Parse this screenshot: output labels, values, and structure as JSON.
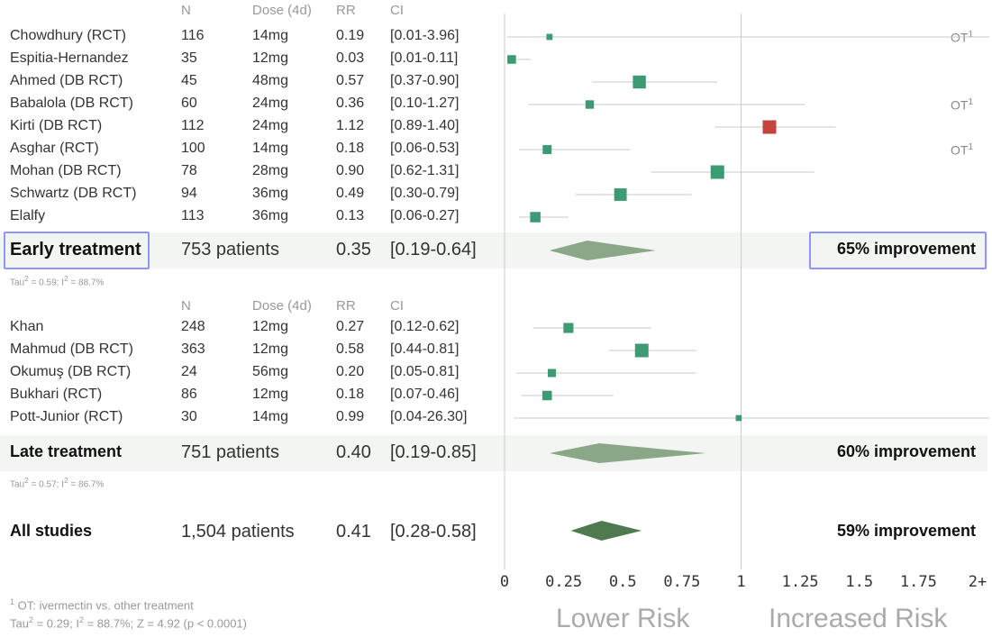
{
  "columns": {
    "study": "",
    "n": "N",
    "dose": "Dose (4d)",
    "rr": "RR",
    "ci": "CI"
  },
  "chart_data": {
    "type": "forest",
    "x_scale": {
      "min": 0,
      "max": 2,
      "ticks": [
        0,
        0.25,
        0.5,
        0.75,
        1,
        1.25,
        1.5,
        1.75,
        2
      ],
      "tick_labels": [
        "0",
        "0.25",
        "0.5",
        "0.75",
        "1",
        "1.25",
        "1.5",
        "1.75",
        "2+"
      ]
    },
    "xlabel_left": "Lower Risk",
    "xlabel_right": "Increased Risk",
    "groups": [
      {
        "name": "Early treatment",
        "studies": [
          {
            "study": "Chowdhury (RCT)",
            "n": "116",
            "dose": "14mg",
            "rr": "0.19",
            "ci": "[0.01-3.96]",
            "rr_val": 0.19,
            "lo": 0.01,
            "hi": 3.96,
            "ot": true
          },
          {
            "study": "Espitia-Hernandez",
            "n": "35",
            "dose": "12mg",
            "rr": "0.03",
            "ci": "[0.01-0.11]",
            "rr_val": 0.03,
            "lo": 0.01,
            "hi": 0.11,
            "ot": false
          },
          {
            "study": "Ahmed (DB RCT)",
            "n": "45",
            "dose": "48mg",
            "rr": "0.57",
            "ci": "[0.37-0.90]",
            "rr_val": 0.57,
            "lo": 0.37,
            "hi": 0.9,
            "ot": false
          },
          {
            "study": "Babalola (DB RCT)",
            "n": "60",
            "dose": "24mg",
            "rr": "0.36",
            "ci": "[0.10-1.27]",
            "rr_val": 0.36,
            "lo": 0.1,
            "hi": 1.27,
            "ot": true
          },
          {
            "study": "Kirti (DB RCT)",
            "n": "112",
            "dose": "24mg",
            "rr": "1.12",
            "ci": "[0.89-1.40]",
            "rr_val": 1.12,
            "lo": 0.89,
            "hi": 1.4,
            "ot": false
          },
          {
            "study": "Asghar (RCT)",
            "n": "100",
            "dose": "14mg",
            "rr": "0.18",
            "ci": "[0.06-0.53]",
            "rr_val": 0.18,
            "lo": 0.06,
            "hi": 0.53,
            "ot": true
          },
          {
            "study": "Mohan (DB RCT)",
            "n": "78",
            "dose": "28mg",
            "rr": "0.90",
            "ci": "[0.62-1.31]",
            "rr_val": 0.9,
            "lo": 0.62,
            "hi": 1.31,
            "ot": false
          },
          {
            "study": "Schwartz (DB RCT)",
            "n": "94",
            "dose": "36mg",
            "rr": "0.49",
            "ci": "[0.30-0.79]",
            "rr_val": 0.49,
            "lo": 0.3,
            "hi": 0.79,
            "ot": false
          },
          {
            "study": "Elalfy",
            "n": "113",
            "dose": "36mg",
            "rr": "0.13",
            "ci": "[0.06-0.27]",
            "rr_val": 0.13,
            "lo": 0.06,
            "hi": 0.27,
            "ot": false
          }
        ],
        "summary": {
          "label": "Early treatment",
          "patients": "753 patients",
          "rr": "0.35",
          "ci": "[0.19-0.64]",
          "rr_val": 0.35,
          "lo": 0.19,
          "hi": 0.64,
          "improvement": "65% improvement"
        },
        "het": {
          "tau_label": "Tau",
          "tau_value": " = 0.59; I",
          "i2_value": " = 88.7%"
        }
      },
      {
        "name": "Late treatment",
        "studies": [
          {
            "study": "Khan",
            "n": "248",
            "dose": "12mg",
            "rr": "0.27",
            "ci": "[0.12-0.62]",
            "rr_val": 0.27,
            "lo": 0.12,
            "hi": 0.62,
            "ot": false
          },
          {
            "study": "Mahmud (DB RCT)",
            "n": "363",
            "dose": "12mg",
            "rr": "0.58",
            "ci": "[0.44-0.81]",
            "rr_val": 0.58,
            "lo": 0.44,
            "hi": 0.81,
            "ot": false
          },
          {
            "study": "Okumuş (DB RCT)",
            "n": "24",
            "dose": "56mg",
            "rr": "0.20",
            "ci": "[0.05-0.81]",
            "rr_val": 0.2,
            "lo": 0.05,
            "hi": 0.81,
            "ot": false
          },
          {
            "study": "Bukhari (RCT)",
            "n": "86",
            "dose": "12mg",
            "rr": "0.18",
            "ci": "[0.07-0.46]",
            "rr_val": 0.18,
            "lo": 0.07,
            "hi": 0.46,
            "ot": false
          },
          {
            "study": "Pott-Junior (RCT)",
            "n": "30",
            "dose": "14mg",
            "rr": "0.99",
            "ci": "[0.04-26.30]",
            "rr_val": 0.99,
            "lo": 0.04,
            "hi": 26.3,
            "ot": false
          }
        ],
        "summary": {
          "label": "Late treatment",
          "patients": "751 patients",
          "rr": "0.40",
          "ci": "[0.19-0.85]",
          "rr_val": 0.4,
          "lo": 0.19,
          "hi": 0.85,
          "improvement": "60% improvement"
        },
        "het": {
          "tau_label": "Tau",
          "tau_value": " = 0.57; I",
          "i2_value": " = 86.7%"
        }
      }
    ],
    "overall": {
      "label": "All studies",
      "patients": "1,504 patients",
      "rr": "0.41",
      "ci": "[0.28-0.58]",
      "rr_val": 0.41,
      "lo": 0.28,
      "hi": 0.58,
      "improvement": "59% improvement"
    },
    "colors": {
      "benefit": "#3d9b73",
      "harm": "#c4453f",
      "diamond_group": "#8aa888",
      "diamond_overall": "#4f7a4f",
      "ci_line": "#c8c8c8",
      "ref_line": "#cccccc"
    }
  },
  "ot_marker": "OT",
  "ot_sup": "1",
  "footnote": {
    "sup": "1",
    "text": " OT: ivermectin vs. other treatment",
    "tau_line_a": "Tau",
    "tau_line_b": " = 0.29; I",
    "tau_line_c": " = 88.7%; Z = 4.92 (p < 0.0001)",
    "two": "2"
  }
}
